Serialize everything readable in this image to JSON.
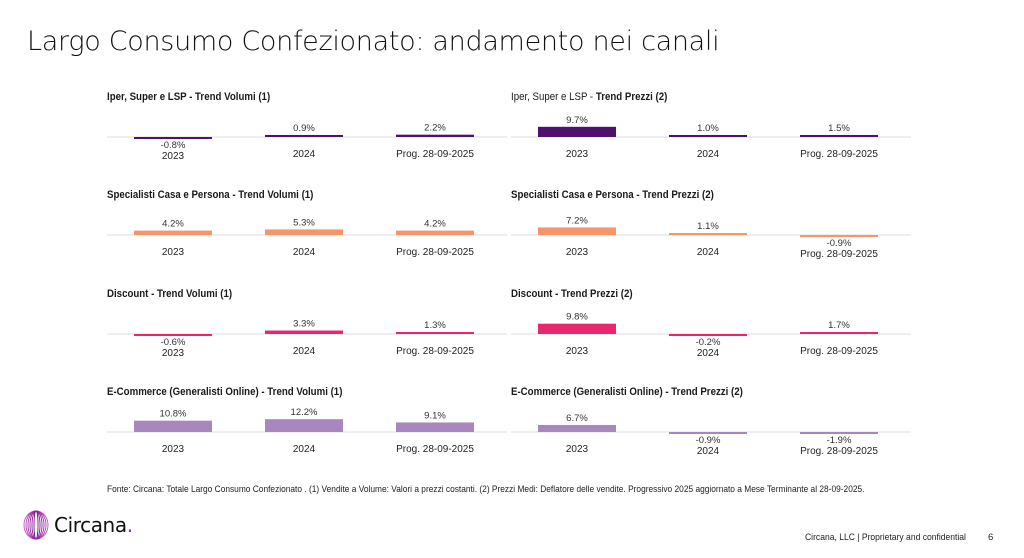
{
  "page": {
    "title": "Largo Consumo Confezionato: andamento nei canali",
    "footnote": "Fonte: Circana: Totale Largo Consumo Confezionato . (1) Vendite a Volume: Valori a prezzi costanti. (2) Prezzi Medi: Deflatore delle vendite. Progressivo 2025 aggiornato a Mese Terminante al 28-09-2025.",
    "logo_text": "Circana",
    "logo_dot": ".",
    "confidential": "Circana, LLC |  Proprietary and confidential",
    "page_number": "6"
  },
  "colors": {
    "iper": "#4f1170",
    "specialisti": "#f79468",
    "discount": "#e8276f",
    "ecommerce": "#a986be",
    "baseline": "#dcdcdc",
    "logo_accent": "#9b1fa6"
  },
  "chart_data": [
    {
      "type": "bar",
      "title_prefix": "Iper, Super e LSP - ",
      "title_main": "Trend Volumi (1)",
      "categories": [
        "2023",
        "2024",
        "Prog. 28-09-2025"
      ],
      "values": [
        -0.8,
        0.9,
        2.2
      ],
      "labels": [
        "-0.8%",
        "0.9%",
        "2.2%"
      ],
      "color_key": "iper",
      "xlabel": "",
      "ylabel": ""
    },
    {
      "type": "bar",
      "title_prefix": "Iper, Super e LSP - ",
      "title_main": "Trend Prezzi (2)",
      "categories": [
        "2023",
        "2024",
        "Prog. 28-09-2025"
      ],
      "values": [
        9.7,
        1.0,
        1.5
      ],
      "labels": [
        "9.7%",
        "1.0%",
        "1.5%"
      ],
      "color_key": "iper",
      "xlabel": "",
      "ylabel": ""
    },
    {
      "type": "bar",
      "title_prefix": "",
      "title_main": "Specialisti Casa e Persona - Trend Volumi (1)",
      "categories": [
        "2023",
        "2024",
        "Prog. 28-09-2025"
      ],
      "values": [
        4.2,
        5.3,
        4.2
      ],
      "labels": [
        "4.2%",
        "5.3%",
        "4.2%"
      ],
      "color_key": "specialisti",
      "xlabel": "",
      "ylabel": ""
    },
    {
      "type": "bar",
      "title_prefix": "",
      "title_main": "Specialisti Casa e Persona - Trend Prezzi (2)",
      "categories": [
        "2023",
        "2024",
        "Prog. 28-09-2025"
      ],
      "values": [
        7.2,
        1.1,
        -0.9
      ],
      "labels": [
        "7.2%",
        "1.1%",
        "-0.9%"
      ],
      "color_key": "specialisti",
      "xlabel": "",
      "ylabel": ""
    },
    {
      "type": "bar",
      "title_prefix": "",
      "title_main": "Discount - Trend Volumi (1)",
      "categories": [
        "2023",
        "2024",
        "Prog. 28-09-2025"
      ],
      "values": [
        -0.6,
        3.3,
        1.3
      ],
      "labels": [
        "-0.6%",
        "3.3%",
        "1.3%"
      ],
      "color_key": "discount",
      "xlabel": "",
      "ylabel": ""
    },
    {
      "type": "bar",
      "title_prefix": "",
      "title_main": "Discount - Trend Prezzi (2)",
      "categories": [
        "2023",
        "2024",
        "Prog. 28-09-2025"
      ],
      "values": [
        9.8,
        -0.2,
        1.7
      ],
      "labels": [
        "9.8%",
        "-0.2%",
        "1.7%"
      ],
      "color_key": "discount",
      "xlabel": "",
      "ylabel": ""
    },
    {
      "type": "bar",
      "title_prefix": "",
      "title_main": "E-Commerce (Generalisti Online) - Trend Volumi (1)",
      "categories": [
        "2023",
        "2024",
        "Prog. 28-09-2025"
      ],
      "values": [
        10.8,
        12.2,
        9.1
      ],
      "labels": [
        "10.8%",
        "12.2%",
        "9.1%"
      ],
      "color_key": "ecommerce",
      "xlabel": "",
      "ylabel": ""
    },
    {
      "type": "bar",
      "title_prefix": "",
      "title_main": "E-Commerce (Generalisti Online) - Trend Prezzi (2)",
      "categories": [
        "2023",
        "2024",
        "Prog. 28-09-2025"
      ],
      "values": [
        6.7,
        -0.9,
        -1.9
      ],
      "labels": [
        "6.7%",
        "-0.9%",
        "-1.9%"
      ],
      "color_key": "ecommerce",
      "xlabel": "",
      "ylabel": ""
    }
  ]
}
